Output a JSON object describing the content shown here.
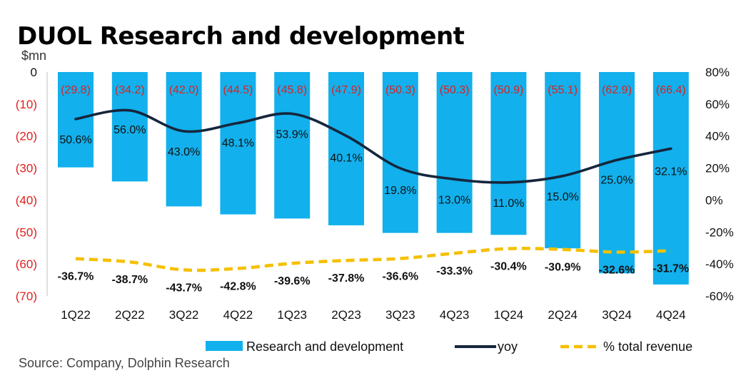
{
  "title": "DUOL Research and development",
  "unit_label": "$mn",
  "source": "Source:  Company, Dolphin Research",
  "colors": {
    "bar": "#12b0ec",
    "yoy_line": "#15263d",
    "pct_line": "#f5c000",
    "negative_text": "#e02020",
    "axis_text": "#111111"
  },
  "chart_data": {
    "type": "bar",
    "categories": [
      "1Q22",
      "2Q22",
      "3Q22",
      "4Q22",
      "1Q23",
      "2Q23",
      "3Q23",
      "4Q23",
      "1Q24",
      "2Q24",
      "3Q24",
      "4Q24"
    ],
    "series": [
      {
        "name": "Research and development",
        "type": "bar",
        "axis": "left",
        "values": [
          -29.8,
          -34.2,
          -42.0,
          -44.5,
          -45.8,
          -47.9,
          -50.3,
          -50.3,
          -50.9,
          -55.1,
          -62.9,
          -66.4
        ],
        "labels": [
          "(29.8)",
          "(34.2)",
          "(42.0)",
          "(44.5)",
          "(45.8)",
          "(47.9)",
          "(50.3)",
          "(50.3)",
          "(50.9)",
          "(55.1)",
          "(62.9)",
          "(66.4)"
        ]
      },
      {
        "name": "yoy",
        "type": "line",
        "axis": "right",
        "values": [
          50.6,
          56.0,
          43.0,
          48.1,
          53.9,
          40.1,
          19.8,
          13.0,
          11.0,
          15.0,
          25.0,
          32.1
        ],
        "labels": [
          "50.6%",
          "56.0%",
          "43.0%",
          "48.1%",
          "53.9%",
          "40.1%",
          "19.8%",
          "13.0%",
          "11.0%",
          "15.0%",
          "25.0%",
          "32.1%"
        ]
      },
      {
        "name": "% total revenue",
        "type": "line",
        "style": "dashed",
        "axis": "right",
        "values": [
          -36.7,
          -38.7,
          -43.7,
          -42.8,
          -39.6,
          -37.8,
          -36.6,
          -33.3,
          -30.4,
          -30.9,
          -32.6,
          -31.7
        ],
        "labels": [
          "-36.7%",
          "-38.7%",
          "-43.7%",
          "-42.8%",
          "-39.6%",
          "-37.8%",
          "-36.6%",
          "-33.3%",
          "-30.4%",
          "-30.9%",
          "-32.6%",
          "-31.7%"
        ]
      }
    ],
    "y_left": {
      "range": [
        -70,
        0
      ],
      "ticks": [
        "0",
        "(10)",
        "(20)",
        "(30)",
        "(40)",
        "(50)",
        "(60)",
        "(70)"
      ]
    },
    "y_right": {
      "range": [
        -60,
        80
      ],
      "ticks": [
        "80%",
        "60%",
        "40%",
        "20%",
        "0%",
        "-20%",
        "-40%",
        "-60%"
      ]
    },
    "grid": false,
    "legend_position": "bottom"
  }
}
